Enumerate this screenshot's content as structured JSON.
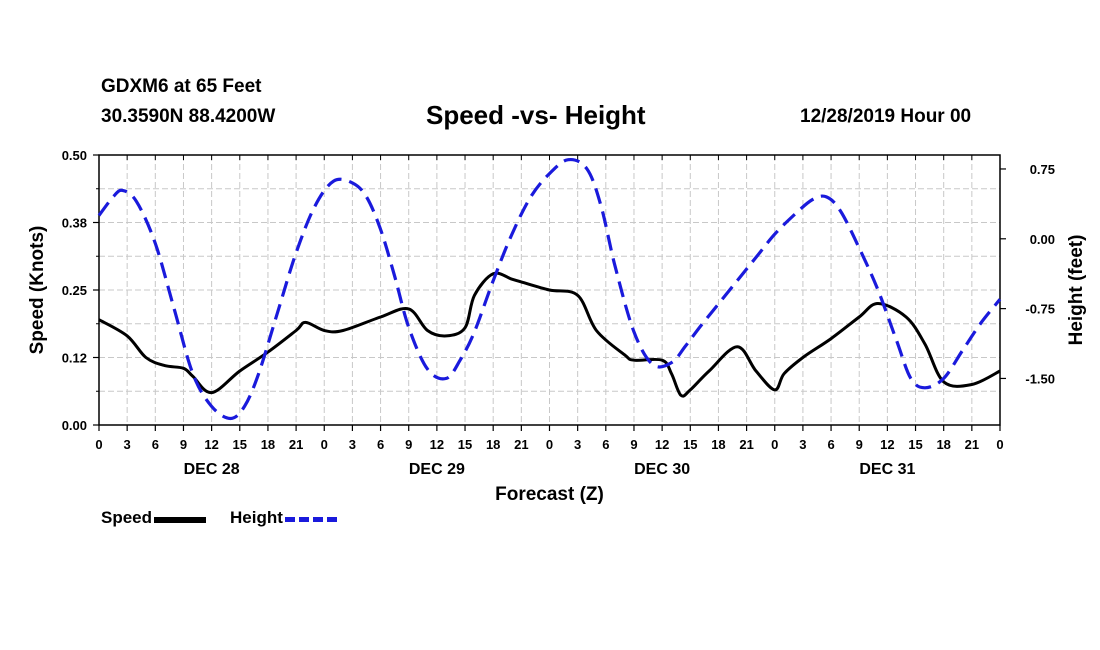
{
  "header": {
    "station": "GDXM6 at 65 Feet",
    "coordinates": "30.3590N 88.4200W",
    "title": "Speed -vs- Height",
    "run_time": "12/28/2019 Hour 00"
  },
  "legend": {
    "speed_label": "Speed",
    "height_label": "Height"
  },
  "colors": {
    "speed": "#000000",
    "height": "#1a1adc",
    "grid": "#c8c8c8"
  },
  "chart_data": {
    "type": "line",
    "xlabel": "Forecast (Z)",
    "ylabel_left": "Speed (Knots)",
    "ylabel_right": "Height (feet)",
    "x_unit": "hours since 12/28/2019 00Z",
    "xlim": [
      0,
      96
    ],
    "ylim_left": [
      0,
      0.5
    ],
    "ylim_right": [
      -2.0,
      0.9
    ],
    "yticks_left": [
      "0.00",
      "0.12",
      "0.25",
      "0.38",
      "0.50"
    ],
    "yticks_right": [
      "-1.50",
      "-0.75",
      "0.00",
      "0.75"
    ],
    "ytick_values_right": [
      -1.5,
      -0.75,
      0,
      0.75
    ],
    "xtick_labels": [
      "0",
      "3",
      "6",
      "9",
      "12",
      "15",
      "18",
      "21",
      "0",
      "3",
      "6",
      "9",
      "12",
      "15",
      "18",
      "21",
      "0",
      "3",
      "6",
      "9",
      "12",
      "15",
      "18",
      "21",
      "0",
      "3",
      "6",
      "9",
      "12",
      "15",
      "18",
      "21",
      "0"
    ],
    "day_labels": [
      {
        "label": "DEC 28",
        "hour": 12
      },
      {
        "label": "DEC 29",
        "hour": 36
      },
      {
        "label": "DEC 30",
        "hour": 60
      },
      {
        "label": "DEC 31",
        "hour": 84
      }
    ],
    "series": [
      {
        "name": "Speed",
        "axis": "left",
        "style": "solid",
        "x": [
          0,
          3,
          5,
          7,
          9,
          10,
          12,
          15,
          18,
          21,
          22,
          24,
          26,
          30,
          33,
          35,
          37,
          39,
          40,
          42,
          44,
          45,
          48,
          51,
          53,
          56,
          57,
          60,
          61,
          62,
          63,
          65,
          68,
          70,
          72,
          73,
          75,
          78,
          81,
          83,
          86,
          88,
          90,
          93,
          96
        ],
        "values": [
          0.195,
          0.165,
          0.125,
          0.11,
          0.105,
          0.09,
          0.06,
          0.1,
          0.135,
          0.175,
          0.19,
          0.175,
          0.175,
          0.2,
          0.215,
          0.175,
          0.165,
          0.18,
          0.24,
          0.28,
          0.27,
          0.265,
          0.25,
          0.24,
          0.175,
          0.13,
          0.12,
          0.12,
          0.095,
          0.055,
          0.065,
          0.1,
          0.145,
          0.1,
          0.065,
          0.095,
          0.125,
          0.16,
          0.2,
          0.225,
          0.2,
          0.15,
          0.08,
          0.075,
          0.1
        ]
      },
      {
        "name": "Height",
        "axis": "right",
        "style": "dashed",
        "x": [
          0,
          1.5,
          2.5,
          4,
          6,
          8,
          10,
          12,
          14,
          15.5,
          17,
          19,
          21,
          23,
          25,
          27,
          28.5,
          30,
          31.5,
          33,
          35,
          37,
          38.5,
          40,
          42,
          44,
          46,
          48,
          50,
          52,
          53.5,
          55,
          57,
          59,
          61,
          62.5,
          64,
          66,
          68,
          70,
          72,
          74,
          76,
          77.5,
          79,
          81,
          83,
          85,
          86.5,
          88,
          90,
          92,
          94,
          96
        ],
        "values": [
          0.25,
          0.45,
          0.52,
          0.4,
          -0.05,
          -0.75,
          -1.45,
          -1.8,
          -1.93,
          -1.8,
          -1.45,
          -0.8,
          -0.15,
          0.35,
          0.62,
          0.6,
          0.45,
          0.1,
          -0.4,
          -0.95,
          -1.4,
          -1.5,
          -1.3,
          -1.0,
          -0.45,
          0.05,
          0.45,
          0.7,
          0.85,
          0.75,
          0.35,
          -0.3,
          -1.0,
          -1.35,
          -1.33,
          -1.15,
          -0.95,
          -0.7,
          -0.45,
          -0.2,
          0.05,
          0.25,
          0.42,
          0.45,
          0.3,
          -0.1,
          -0.55,
          -1.1,
          -1.5,
          -1.6,
          -1.5,
          -1.2,
          -0.9,
          -0.65
        ]
      }
    ]
  }
}
